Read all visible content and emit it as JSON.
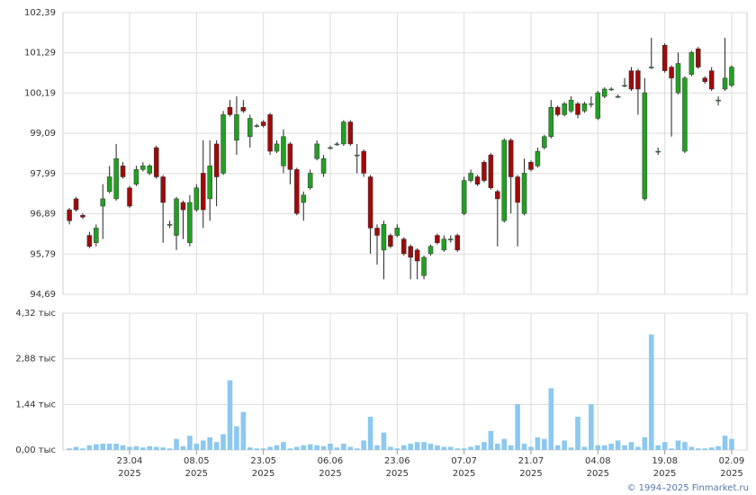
{
  "chart_data": [
    {
      "type": "candlestick",
      "up_color": "#22a022",
      "down_color": "#a00a0a",
      "wick_color": "#222",
      "grid": true,
      "open": [
        97.0,
        97.3,
        96.85,
        96.3,
        96.1,
        97.1,
        97.5,
        97.3,
        98.2,
        97.6,
        97.7,
        98.1,
        98.0,
        98.7,
        97.9,
        96.6,
        96.3,
        97.2,
        96.1,
        97.0,
        98.0,
        97.3,
        98.8,
        98.0,
        99.8,
        98.9,
        99.8,
        99.0,
        99.3,
        99.4,
        99.6,
        98.6,
        98.2,
        98.8,
        98.1,
        97.2,
        97.6,
        98.4,
        98.0,
        98.7,
        98.8,
        98.8,
        99.4,
        98.5,
        98.6,
        97.9,
        96.5,
        95.9,
        96.3,
        96.3,
        96.2,
        96.0,
        95.9,
        95.2,
        95.8,
        96.3,
        95.9,
        96.2,
        96.3,
        96.9,
        97.8,
        97.9,
        98.3,
        98.5,
        97.5,
        96.7,
        98.9,
        97.9,
        96.9,
        98.3,
        98.2,
        98.7,
        99.0,
        99.8,
        99.6,
        99.7,
        99.9,
        99.7,
        99.9,
        99.5,
        100.1,
        100.3,
        100.1,
        100.4,
        100.8,
        100.8,
        97.3,
        100.9,
        98.6,
        101.5,
        100.9,
        100.2,
        98.6,
        100.7,
        101.4,
        100.6,
        100.8,
        100.0,
        100.3,
        100.4
      ],
      "high": [
        97.05,
        97.35,
        96.9,
        96.4,
        96.6,
        97.7,
        98.2,
        98.8,
        98.3,
        97.65,
        98.2,
        98.3,
        98.25,
        98.75,
        97.95,
        96.7,
        97.35,
        97.25,
        97.4,
        97.7,
        98.9,
        98.9,
        98.9,
        99.7,
        100.0,
        100.1,
        100.0,
        99.6,
        99.35,
        99.45,
        99.65,
        98.9,
        99.2,
        98.85,
        98.15,
        97.5,
        98.1,
        98.9,
        98.5,
        98.75,
        98.85,
        99.45,
        99.45,
        98.8,
        98.65,
        97.95,
        96.6,
        96.7,
        96.35,
        96.6,
        96.25,
        96.05,
        95.95,
        95.75,
        96.05,
        96.35,
        96.3,
        96.3,
        96.35,
        97.9,
        98.1,
        97.95,
        98.35,
        98.55,
        97.55,
        98.95,
        98.95,
        97.95,
        98.4,
        98.35,
        98.7,
        99.05,
        100.0,
        99.85,
        99.95,
        100.1,
        99.95,
        99.95,
        100.1,
        100.25,
        100.35,
        100.35,
        100.15,
        100.6,
        100.9,
        100.85,
        100.6,
        101.7,
        98.7,
        101.55,
        100.95,
        101.3,
        100.65,
        101.35,
        101.45,
        100.65,
        100.9,
        100.1,
        101.7,
        100.95
      ],
      "low": [
        96.6,
        96.95,
        96.75,
        95.95,
        96.0,
        96.2,
        97.45,
        97.25,
        97.85,
        97.05,
        97.65,
        98.05,
        97.95,
        97.85,
        96.1,
        96.5,
        95.9,
        96.2,
        96.0,
        96.95,
        96.5,
        96.7,
        97.1,
        97.95,
        99.55,
        98.5,
        99.65,
        98.7,
        99.25,
        99.25,
        98.5,
        98.55,
        98.0,
        97.7,
        96.85,
        96.7,
        97.55,
        98.35,
        97.9,
        98.65,
        98.75,
        98.75,
        98.75,
        98.0,
        97.9,
        95.8,
        95.5,
        95.1,
        95.95,
        96.25,
        95.75,
        95.1,
        95.1,
        95.1,
        95.75,
        96.05,
        95.85,
        96.1,
        95.85,
        96.85,
        97.75,
        97.65,
        97.75,
        97.55,
        96.0,
        96.65,
        96.9,
        96.0,
        96.85,
        98.05,
        98.15,
        98.65,
        98.95,
        99.55,
        99.55,
        99.65,
        99.5,
        99.65,
        99.8,
        99.45,
        100.05,
        100.25,
        100.05,
        100.35,
        100.25,
        99.6,
        97.25,
        100.85,
        98.5,
        100.75,
        99.0,
        100.15,
        98.55,
        100.65,
        100.85,
        100.45,
        100.25,
        99.85,
        100.25,
        100.35
      ],
      "close": [
        96.7,
        97.0,
        96.8,
        96.0,
        96.5,
        97.3,
        97.9,
        98.4,
        97.9,
        97.1,
        98.1,
        98.2,
        98.2,
        97.9,
        97.2,
        96.6,
        97.3,
        97.0,
        97.2,
        97.6,
        97.0,
        98.2,
        97.9,
        99.6,
        99.6,
        99.6,
        99.7,
        99.5,
        99.3,
        99.3,
        98.6,
        98.8,
        99.0,
        98.1,
        96.9,
        97.4,
        98.0,
        98.8,
        98.4,
        98.7,
        98.8,
        99.4,
        98.8,
        98.5,
        98.0,
        96.5,
        96.3,
        96.6,
        96.0,
        96.5,
        95.8,
        95.7,
        95.6,
        95.7,
        96.0,
        96.1,
        96.2,
        96.2,
        95.9,
        97.8,
        98.0,
        97.7,
        97.8,
        97.6,
        97.3,
        98.9,
        97.9,
        97.2,
        98.0,
        98.1,
        98.6,
        99.0,
        99.8,
        99.6,
        99.9,
        100.0,
        99.6,
        99.9,
        99.9,
        100.2,
        100.3,
        100.3,
        100.1,
        100.4,
        100.3,
        100.3,
        100.2,
        100.9,
        98.6,
        100.8,
        100.6,
        101.0,
        100.6,
        101.3,
        100.9,
        100.5,
        100.3,
        100.0,
        100.6,
        100.9
      ],
      "ylim": [
        94.69,
        102.39
      ],
      "yticks": [
        {
          "value": 94.69,
          "label": "94,69"
        },
        {
          "value": 95.79,
          "label": "95,79"
        },
        {
          "value": 96.89,
          "label": "96,89"
        },
        {
          "value": 97.99,
          "label": "97,99"
        },
        {
          "value": 99.09,
          "label": "99,09"
        },
        {
          "value": 100.19,
          "label": "100,19"
        },
        {
          "value": 101.29,
          "label": "101,29"
        },
        {
          "value": 102.39,
          "label": "102,39"
        }
      ]
    },
    {
      "type": "bar",
      "color": "#8cc8f0",
      "grid": true,
      "values": [
        0.05,
        0.1,
        0.05,
        0.15,
        0.18,
        0.2,
        0.2,
        0.2,
        0.15,
        0.1,
        0.12,
        0.08,
        0.12,
        0.1,
        0.08,
        0.05,
        0.35,
        0.12,
        0.45,
        0.2,
        0.3,
        0.4,
        0.25,
        0.5,
        2.2,
        0.75,
        1.2,
        0.08,
        0.05,
        0.05,
        0.1,
        0.15,
        0.25,
        0.05,
        0.1,
        0.15,
        0.18,
        0.15,
        0.12,
        0.2,
        0.08,
        0.2,
        0.1,
        0.05,
        0.3,
        1.05,
        0.15,
        0.55,
        0.1,
        0.05,
        0.15,
        0.2,
        0.25,
        0.25,
        0.2,
        0.15,
        0.1,
        0.1,
        0.05,
        0.05,
        0.1,
        0.15,
        0.25,
        0.6,
        0.2,
        0.35,
        0.15,
        1.45,
        0.2,
        0.1,
        0.4,
        0.35,
        1.95,
        0.15,
        0.3,
        0.08,
        1.05,
        0.1,
        1.45,
        0.15,
        0.15,
        0.2,
        0.3,
        0.15,
        0.25,
        0.1,
        0.4,
        3.65,
        0.15,
        0.25,
        0.05,
        0.3,
        0.25,
        0.1,
        0.05,
        0.05,
        0.08,
        0.12,
        0.45,
        0.35
      ],
      "ylim": [
        0,
        4.32
      ],
      "yticks": [
        {
          "value": 0,
          "label": "0,00 тыс"
        },
        {
          "value": 1.44,
          "label": "1,44 тыс"
        },
        {
          "value": 2.88,
          "label": "2,88 тыс"
        },
        {
          "value": 4.32,
          "label": "4,32 тыс"
        }
      ],
      "xticks": [
        {
          "value": 9,
          "label": "23.04",
          "year": "2025"
        },
        {
          "value": 19,
          "label": "08.05",
          "year": "2025"
        },
        {
          "value": 29,
          "label": "23.05",
          "year": "2025"
        },
        {
          "value": 39,
          "label": "06.06",
          "year": "2025"
        },
        {
          "value": 49,
          "label": "23.06",
          "year": "2025"
        },
        {
          "value": 59,
          "label": "07.07",
          "year": "2025"
        },
        {
          "value": 69,
          "label": "21.07",
          "year": "2025"
        },
        {
          "value": 79,
          "label": "04.08",
          "year": "2025"
        },
        {
          "value": 89,
          "label": "19.08",
          "year": "2025"
        },
        {
          "value": 99,
          "label": "02.09",
          "year": "2025"
        }
      ]
    }
  ],
  "footer": "© 1994–2025 Finmarket.ru"
}
